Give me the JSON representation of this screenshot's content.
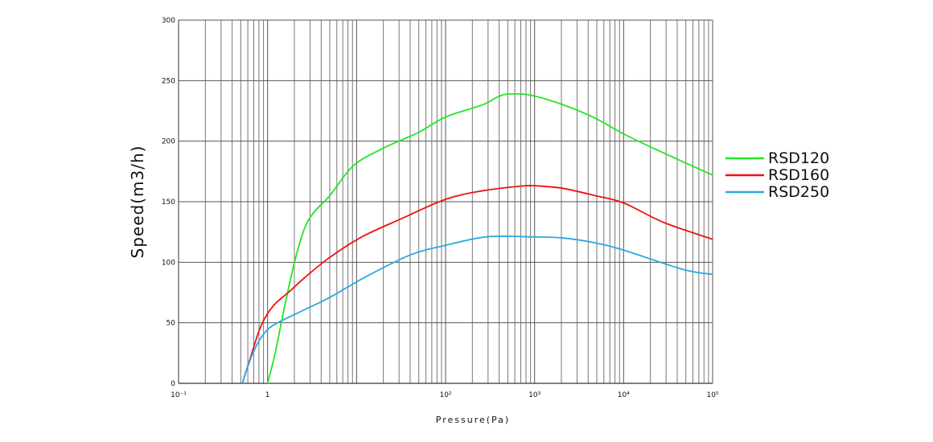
{
  "chart_data": {
    "type": "line",
    "title": "",
    "xlabel": "Pressure(Pa)",
    "ylabel": "Speed(m3/h)",
    "xscale": "log",
    "xlim": [
      0.1,
      100000
    ],
    "ylim": [
      0,
      300
    ],
    "yticks": [
      0,
      50,
      100,
      150,
      200,
      250,
      300
    ],
    "xtick_values": [
      0.1,
      1,
      100,
      1000,
      10000,
      100000
    ],
    "xtick_labels": [
      "10⁻¹",
      "1",
      "10²",
      "10³",
      "10⁴",
      "10⁵"
    ],
    "grid": true,
    "legend_position": "right",
    "series": [
      {
        "name": "RSD120",
        "color": "#22e622",
        "x": [
          1.0,
          1.21,
          1.5,
          1.96,
          2.57,
          3.3,
          5.0,
          9.3,
          21,
          49,
          100,
          260,
          395,
          540,
          900,
          2100,
          4800,
          10000,
          25000,
          100000
        ],
        "y": [
          0,
          24,
          58,
          97,
          127,
          141,
          155,
          180,
          195,
          207,
          220,
          230,
          237,
          239,
          238,
          230,
          219,
          206,
          192,
          172
        ]
      },
      {
        "name": "RSD160",
        "color": "#ee1111",
        "x": [
          0.52,
          0.66,
          0.85,
          1.16,
          1.77,
          2.68,
          5.0,
          11.5,
          32,
          100,
          260,
          740,
          1100,
          2100,
          4800,
          10000,
          28000,
          100000
        ],
        "y": [
          0,
          24,
          48,
          64,
          76,
          88,
          104,
          121,
          136,
          152,
          159,
          163,
          163,
          161,
          155,
          149,
          133,
          119
        ]
      },
      {
        "name": "RSD250",
        "color": "#2aa9e0",
        "x": [
          0.52,
          0.65,
          0.85,
          1.16,
          2.17,
          5.0,
          12.7,
          40,
          100,
          290,
          900,
          2100,
          4800,
          10000,
          47000,
          100000
        ],
        "y": [
          0,
          21,
          38,
          48,
          58,
          71,
          88,
          106,
          114,
          121,
          121,
          120,
          116,
          110,
          94,
          90
        ]
      }
    ]
  }
}
